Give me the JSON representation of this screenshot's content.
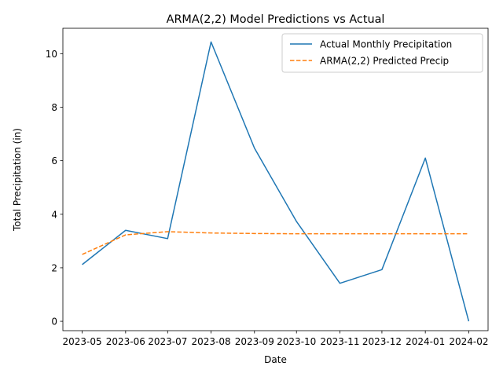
{
  "chart_data": {
    "type": "line",
    "title": "ARMA(2,2) Model Predictions vs Actual",
    "xlabel": "Date",
    "ylabel": "Total Precipitation (in)",
    "categories": [
      "2023-05",
      "2023-06",
      "2023-07",
      "2023-08",
      "2023-09",
      "2023-10",
      "2023-11",
      "2023-12",
      "2024-01",
      "2024-02"
    ],
    "x_dates": [
      "2023-05-01",
      "2023-06-01",
      "2023-07-01",
      "2023-08-01",
      "2023-09-01",
      "2023-10-01",
      "2023-11-01",
      "2023-12-01",
      "2024-01-01",
      "2024-02-01"
    ],
    "ylim": [
      -0.35,
      10.95
    ],
    "yticks": [
      0,
      2,
      4,
      6,
      8,
      10
    ],
    "grid": false,
    "legend_position": "upper right",
    "series": [
      {
        "name": "Actual Monthly Precipitation",
        "color": "#1f77b4",
        "linestyle": "solid",
        "x": [
          "2023-05-01",
          "2023-06-01",
          "2023-07-01",
          "2023-08-01",
          "2023-09-01",
          "2023-10-01",
          "2023-11-01",
          "2023-12-01",
          "2024-01-01",
          "2024-02-01"
        ],
        "values": [
          2.12,
          3.4,
          3.09,
          10.44,
          6.47,
          3.73,
          1.42,
          1.93,
          6.1,
          0.0
        ]
      },
      {
        "name": "ARMA(2,2) Predicted Precip",
        "color": "#ff7f0e",
        "linestyle": "dashed",
        "x": [
          "2023-05-01",
          "2023-06-01",
          "2023-07-01",
          "2023-08-01",
          "2023-09-01",
          "2023-10-01",
          "2023-11-01",
          "2023-12-01",
          "2024-01-01",
          "2024-02-01"
        ],
        "values": [
          2.5,
          3.23,
          3.35,
          3.3,
          3.28,
          3.27,
          3.27,
          3.27,
          3.27,
          3.27
        ]
      }
    ]
  }
}
